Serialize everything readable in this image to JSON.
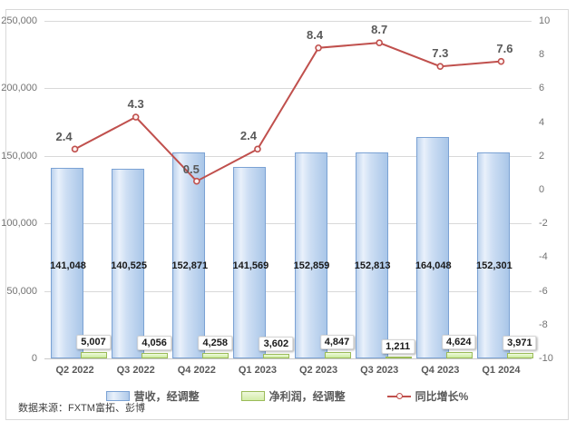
{
  "source_note": "数据来源：FXTM富拓、彭博",
  "chart_data": {
    "type": "combo-bar-line",
    "categories": [
      "Q2 2022",
      "Q3 2022",
      "Q4 2022",
      "Q1 2023",
      "Q2 2023",
      "Q3 2023",
      "Q4 2023",
      "Q1 2024"
    ],
    "series": [
      {
        "name": "营收，经调整",
        "type": "bar",
        "axis": "left",
        "fill": "#c9dcf3",
        "border": "#7ba2d4",
        "values": [
          141048,
          140525,
          152871,
          141569,
          152859,
          152813,
          164048,
          152301
        ],
        "labels": [
          "141,048",
          "140,525",
          "152,871",
          "141,569",
          "152,859",
          "152,813",
          "164,048",
          "152,301"
        ]
      },
      {
        "name": "净利润，经调整",
        "type": "bar",
        "axis": "left",
        "fill": "#d9f2b8",
        "border": "#9bbb59",
        "values": [
          5007,
          4056,
          4258,
          3602,
          4847,
          1211,
          4624,
          3971
        ],
        "labels": [
          "5,007",
          "4,056",
          "4,258",
          "3,602",
          "4,847",
          "1,211",
          "4,624",
          "3,971"
        ]
      },
      {
        "name": "同比增长%",
        "type": "line",
        "axis": "right",
        "color": "#c0504d",
        "values": [
          2.4,
          4.3,
          0.5,
          2.4,
          8.4,
          8.7,
          7.3,
          7.6
        ],
        "labels": [
          "2.4",
          "4.3",
          "0.5",
          "2.4",
          "8.4",
          "8.7",
          "7.3",
          "7.6"
        ]
      }
    ],
    "left_axis": {
      "min": 0,
      "max": 250000,
      "step": 50000,
      "tick_labels": [
        "0",
        "50,000",
        "100,000",
        "150,000",
        "200,000",
        "250,000"
      ]
    },
    "right_axis": {
      "min": -10,
      "max": 10,
      "step": 2,
      "tick_labels": [
        "-10",
        "-8",
        "-6",
        "-4",
        "-2",
        "0",
        "2",
        "4",
        "6",
        "8",
        "10"
      ]
    },
    "grid": true,
    "legend_position": "bottom"
  }
}
